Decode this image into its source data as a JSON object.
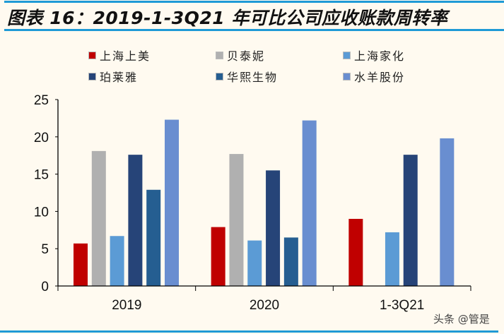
{
  "title": "图表 16：2019-1-3Q21 年可比公司应收账款周转率",
  "watermark": "头条 @管是",
  "chart_data": {
    "type": "bar",
    "title": "图表 16：2019-1-3Q21 年可比公司应收账款周转率",
    "categories": [
      "2019",
      "2020",
      "1-3Q21"
    ],
    "ylim": [
      0,
      25
    ],
    "yticks": [
      0,
      5,
      10,
      15,
      20,
      25
    ],
    "grid": false,
    "legend_position": "top",
    "series": [
      {
        "name": "上海上美",
        "color": "#c00000",
        "values": [
          5.7,
          7.9,
          9.0
        ]
      },
      {
        "name": "贝泰妮",
        "color": "#b0b0b0",
        "values": [
          18.1,
          17.7,
          null
        ]
      },
      {
        "name": "上海家化",
        "color": "#5b9bd5",
        "values": [
          6.7,
          6.1,
          7.2
        ]
      },
      {
        "name": "珀莱雅",
        "color": "#264478",
        "values": [
          17.6,
          15.5,
          17.6
        ]
      },
      {
        "name": "华熙生物",
        "color": "#255e91",
        "values": [
          12.9,
          6.5,
          null
        ]
      },
      {
        "name": "水羊股份",
        "color": "#698ed0",
        "values": [
          22.3,
          22.2,
          19.8
        ]
      }
    ]
  }
}
